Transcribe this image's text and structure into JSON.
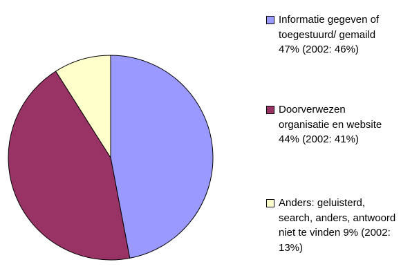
{
  "chart_data": {
    "type": "pie",
    "categories": [
      "Informatie gegeven of toegestuurd/ gemaild  47% (2002: 46%)",
      "Doorverwezen organisatie en website 44% (2002: 41%)",
      "Anders: geluisterd, search, anders, antwoord niet te vinden 9% (2002: 13%)"
    ],
    "values": [
      47,
      44,
      9
    ],
    "colors": [
      "#9999ff",
      "#993366",
      "#ffffcc"
    ],
    "legend": "right"
  }
}
